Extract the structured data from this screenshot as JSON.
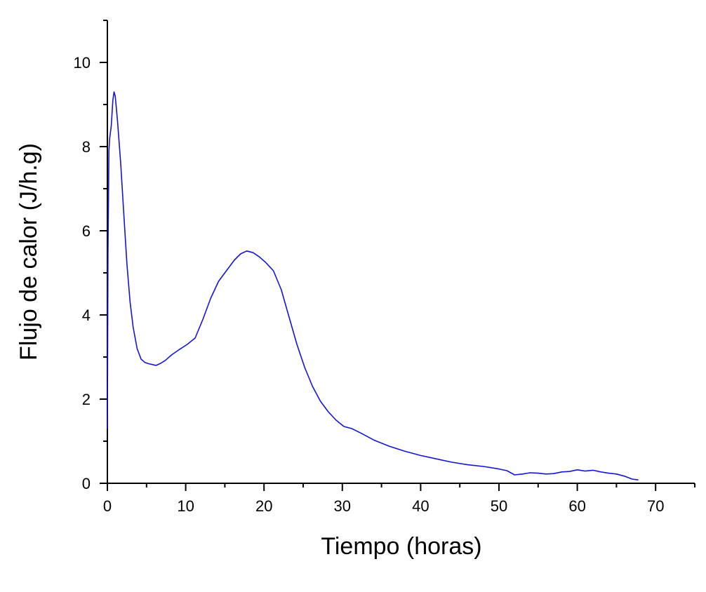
{
  "chart_data": {
    "type": "line",
    "title": "",
    "xlabel": "Tiempo (horas)",
    "ylabel": "Flujo de calor (J/h.g)",
    "xlim": [
      0,
      75
    ],
    "ylim": [
      0,
      11
    ],
    "x_ticks": [
      0,
      10,
      20,
      30,
      40,
      50,
      60,
      70
    ],
    "y_ticks": [
      0,
      2,
      4,
      6,
      8,
      10
    ],
    "x_ticks_minor": [
      5,
      15,
      25,
      35,
      45,
      55,
      65,
      75
    ],
    "y_ticks_minor": [
      1,
      3,
      5,
      7,
      9,
      11
    ],
    "grid": false,
    "legend": "none",
    "series": [
      {
        "color": "#1414d8",
        "points": [
          [
            0.0,
            1.3
          ],
          [
            0.08,
            5.5
          ],
          [
            0.2,
            7.9
          ],
          [
            0.3,
            8.2
          ],
          [
            0.5,
            8.5
          ],
          [
            0.7,
            9.1
          ],
          [
            0.85,
            9.3
          ],
          [
            1.0,
            9.2
          ],
          [
            1.3,
            8.6
          ],
          [
            1.7,
            7.6
          ],
          [
            2.1,
            6.4
          ],
          [
            2.5,
            5.2
          ],
          [
            2.9,
            4.3
          ],
          [
            3.3,
            3.7
          ],
          [
            3.8,
            3.2
          ],
          [
            4.3,
            2.95
          ],
          [
            4.8,
            2.87
          ],
          [
            5.3,
            2.84
          ],
          [
            5.8,
            2.82
          ],
          [
            6.2,
            2.8
          ],
          [
            6.8,
            2.85
          ],
          [
            7.4,
            2.92
          ],
          [
            8.2,
            3.05
          ],
          [
            9.2,
            3.18
          ],
          [
            10.2,
            3.3
          ],
          [
            11.2,
            3.45
          ],
          [
            12.2,
            3.9
          ],
          [
            13.2,
            4.4
          ],
          [
            14.2,
            4.8
          ],
          [
            15.2,
            5.05
          ],
          [
            16.2,
            5.3
          ],
          [
            17.0,
            5.45
          ],
          [
            17.8,
            5.52
          ],
          [
            18.6,
            5.48
          ],
          [
            19.4,
            5.38
          ],
          [
            20.2,
            5.25
          ],
          [
            21.2,
            5.05
          ],
          [
            22.2,
            4.6
          ],
          [
            23.2,
            3.95
          ],
          [
            24.2,
            3.3
          ],
          [
            25.2,
            2.75
          ],
          [
            26.2,
            2.3
          ],
          [
            27.2,
            1.95
          ],
          [
            28.2,
            1.7
          ],
          [
            29.2,
            1.5
          ],
          [
            30.2,
            1.35
          ],
          [
            31.2,
            1.3
          ],
          [
            32.5,
            1.18
          ],
          [
            34.0,
            1.03
          ],
          [
            36.0,
            0.88
          ],
          [
            38.0,
            0.76
          ],
          [
            40.0,
            0.66
          ],
          [
            42.0,
            0.58
          ],
          [
            44.0,
            0.5
          ],
          [
            46.0,
            0.44
          ],
          [
            48.0,
            0.4
          ],
          [
            50.0,
            0.34
          ],
          [
            51.0,
            0.3
          ],
          [
            52.0,
            0.2
          ],
          [
            53.0,
            0.22
          ],
          [
            54.0,
            0.25
          ],
          [
            55.0,
            0.24
          ],
          [
            56.0,
            0.22
          ],
          [
            57.0,
            0.23
          ],
          [
            58.0,
            0.27
          ],
          [
            59.0,
            0.28
          ],
          [
            60.0,
            0.32
          ],
          [
            61.0,
            0.29
          ],
          [
            62.0,
            0.31
          ],
          [
            63.0,
            0.27
          ],
          [
            64.0,
            0.24
          ],
          [
            65.0,
            0.22
          ],
          [
            66.0,
            0.17
          ],
          [
            67.0,
            0.1
          ],
          [
            67.8,
            0.08
          ]
        ]
      }
    ]
  }
}
